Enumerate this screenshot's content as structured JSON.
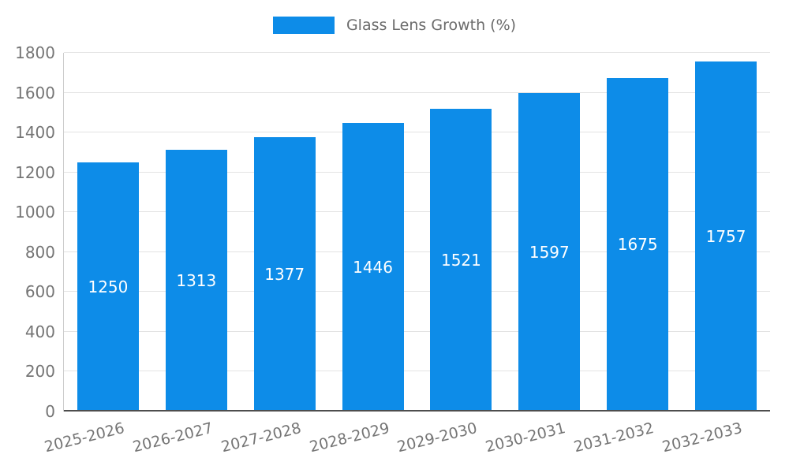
{
  "chart_data": {
    "type": "bar",
    "title": "Glass Lens Growth (%)",
    "legend": {
      "label": "Glass Lens Growth (%)",
      "position": "top"
    },
    "categories": [
      "2025-2026",
      "2026-2027",
      "2027-2028",
      "2028-2029",
      "2029-2030",
      "2030-2031",
      "2031-2032",
      "2032-2033"
    ],
    "values": [
      1250,
      1313,
      1377,
      1446,
      1521,
      1597,
      1675,
      1757
    ],
    "xlabel": "",
    "ylabel": "",
    "ylim": [
      0,
      1800
    ],
    "ytick_step": 200,
    "yticks": [
      0,
      200,
      400,
      600,
      800,
      1000,
      1200,
      1400,
      1600,
      1800
    ],
    "grid": true,
    "value_labels": true,
    "bar_color": "#0d8ce8",
    "axis_text_color": "#757575",
    "gridline_color": "#e3e3e3",
    "value_label_color": "#ffffff"
  }
}
